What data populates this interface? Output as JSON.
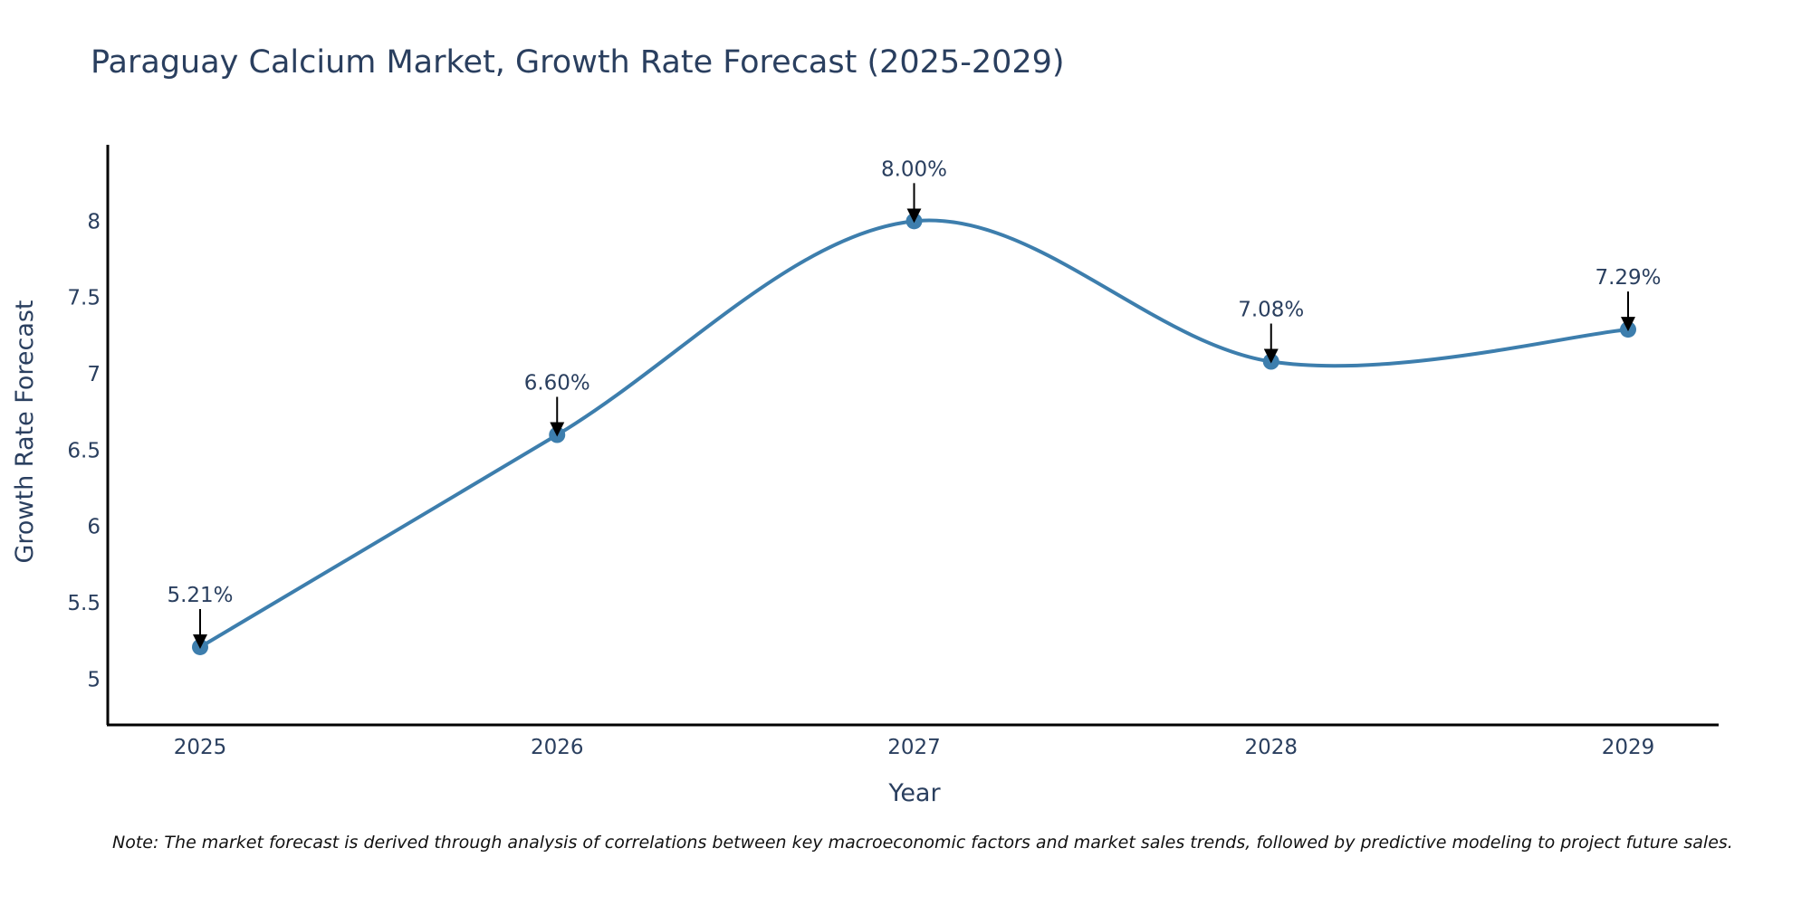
{
  "chart_data": {
    "type": "line",
    "title": "Paraguay Calcium Market, Growth Rate Forecast (2025-2029)",
    "xlabel": "Year",
    "ylabel": "Growth Rate Forecast",
    "categories": [
      "2025",
      "2026",
      "2027",
      "2028",
      "2029"
    ],
    "values": [
      5.21,
      6.6,
      8.0,
      7.08,
      7.29
    ],
    "data_labels": [
      "5.21%",
      "6.60%",
      "8.00%",
      "7.08%",
      "7.29%"
    ],
    "y_ticks": [
      5,
      5.5,
      6,
      6.5,
      7,
      7.5,
      8
    ],
    "y_tick_labels": [
      "5",
      "5.5",
      "6",
      "6.5",
      "7",
      "7.5",
      "8"
    ],
    "ylim": [
      4.7,
      8.5
    ],
    "grid": false,
    "line_shape": "spline",
    "series_color": "#3d7ead",
    "axis_color": "#000000",
    "text_color": "#2a3f5f",
    "annotation_color": "#000000"
  },
  "note": "Note: The market forecast is derived through analysis of correlations between key macroeconomic factors and market sales trends, followed by predictive modeling to project future sales."
}
